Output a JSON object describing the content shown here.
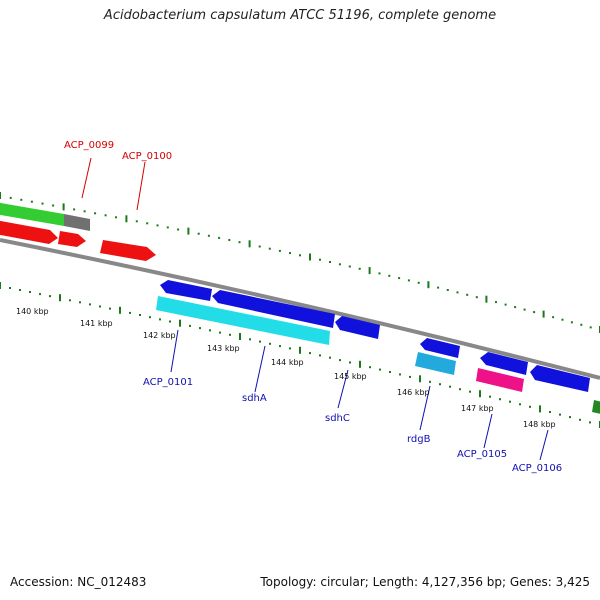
{
  "header": {
    "title": "Acidobacterium capsulatum ATCC 51196, complete genome"
  },
  "footer": {
    "accession": "Accession: NC_012483",
    "summary": "Topology: circular; Length: 4,127,356 bp; Genes: 3,425"
  },
  "colors": {
    "backbone": "#888888",
    "tick": "#1a7a1a",
    "forward_cds": "#ee1111",
    "reverse_cds": "#1111dd",
    "rna": "#33cc33",
    "pseudo": "#707070",
    "cyan": "#22dde8",
    "lightblue": "#22aadd",
    "magenta": "#ee1188"
  },
  "scale_labels": [
    {
      "text": "140 kbp"
    },
    {
      "text": "141 kbp"
    },
    {
      "text": "142 kbp"
    },
    {
      "text": "143 kbp"
    },
    {
      "text": "144 kbp"
    },
    {
      "text": "145 kbp"
    },
    {
      "text": "146 kbp"
    },
    {
      "text": "147 kbp"
    },
    {
      "text": "148 kbp"
    }
  ],
  "gene_labels": [
    {
      "text": "ACP_0099",
      "color": "red"
    },
    {
      "text": "ACP_0100",
      "color": "red"
    },
    {
      "text": "ACP_0101",
      "color": "blue"
    },
    {
      "text": "sdhA",
      "color": "blue"
    },
    {
      "text": "sdhC",
      "color": "blue"
    },
    {
      "text": "rdgB",
      "color": "blue"
    },
    {
      "text": "ACP_0105",
      "color": "blue"
    },
    {
      "text": "ACP_0106",
      "color": "blue"
    }
  ]
}
